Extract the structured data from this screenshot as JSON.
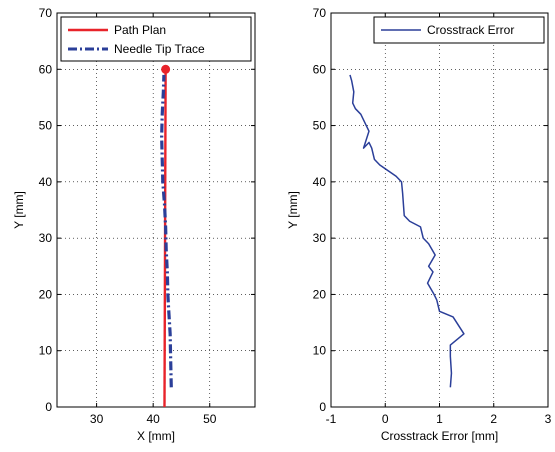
{
  "chart_data": [
    {
      "type": "line",
      "xlabel": "X [mm]",
      "ylabel": "Y [mm]",
      "xlim": [
        23,
        58
      ],
      "ylim": [
        0,
        70
      ],
      "xticks": [
        30,
        40,
        50
      ],
      "yticks": [
        0,
        10,
        20,
        30,
        40,
        50,
        60,
        70
      ],
      "grid": true,
      "legend": "top-right",
      "series": [
        {
          "name": "Path Plan",
          "color": "#e8232a",
          "style": "solid",
          "marker_end": true,
          "points": [
            [
              42.0,
              0.0
            ],
            [
              42.2,
              60.0
            ]
          ]
        },
        {
          "name": "Needle Tip Trace",
          "color": "#2b3f99",
          "style": "dashdot",
          "points": [
            [
              43.2,
              3.5
            ],
            [
              43.1,
              8
            ],
            [
              43.0,
              13
            ],
            [
              42.7,
              18
            ],
            [
              42.6,
              20
            ],
            [
              42.5,
              24
            ],
            [
              42.3,
              28
            ],
            [
              42.2,
              32
            ],
            [
              42.0,
              36
            ],
            [
              41.7,
              40
            ],
            [
              41.6,
              44
            ],
            [
              41.5,
              48
            ],
            [
              41.6,
              52
            ],
            [
              41.8,
              56
            ],
            [
              41.9,
              59
            ]
          ]
        }
      ]
    },
    {
      "type": "line",
      "xlabel": "Crosstrack Error [mm]",
      "ylabel": "Y [mm]",
      "xlim": [
        -1,
        3
      ],
      "ylim": [
        0,
        70
      ],
      "xticks": [
        -1,
        0,
        1,
        2,
        3
      ],
      "yticks": [
        0,
        10,
        20,
        30,
        40,
        50,
        60,
        70
      ],
      "grid": true,
      "legend": "top-right",
      "series": [
        {
          "name": "Crosstrack Error",
          "color": "#2b3f99",
          "style": "solid",
          "points": [
            [
              1.2,
              3.5
            ],
            [
              1.22,
              6
            ],
            [
              1.2,
              9
            ],
            [
              1.2,
              11
            ],
            [
              1.45,
              13
            ],
            [
              1.25,
              16
            ],
            [
              1.0,
              17
            ],
            [
              0.95,
              19
            ],
            [
              0.9,
              20
            ],
            [
              0.78,
              22
            ],
            [
              0.88,
              24
            ],
            [
              0.8,
              25
            ],
            [
              0.92,
              27
            ],
            [
              0.8,
              29
            ],
            [
              0.7,
              30
            ],
            [
              0.65,
              32
            ],
            [
              0.45,
              33
            ],
            [
              0.35,
              34
            ],
            [
              0.32,
              38
            ],
            [
              0.3,
              40
            ],
            [
              0.2,
              41
            ],
            [
              -0.1,
              43
            ],
            [
              -0.2,
              44
            ],
            [
              -0.25,
              46
            ],
            [
              -0.3,
              47
            ],
            [
              -0.4,
              46
            ],
            [
              -0.3,
              49
            ],
            [
              -0.4,
              51
            ],
            [
              -0.45,
              52
            ],
            [
              -0.55,
              53
            ],
            [
              -0.6,
              54
            ],
            [
              -0.58,
              56
            ],
            [
              -0.62,
              58
            ],
            [
              -0.65,
              59
            ]
          ]
        }
      ]
    }
  ]
}
